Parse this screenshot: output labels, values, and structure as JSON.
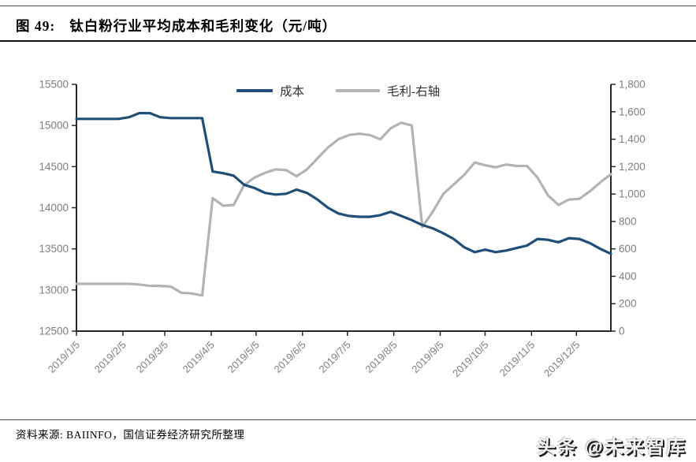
{
  "header": {
    "figure_label": "图 49:",
    "title": "钛白粉行业平均成本和毛利变化（元/吨）"
  },
  "legend": {
    "items": [
      {
        "label": "成本",
        "color": "#1F4E79"
      },
      {
        "label": "毛利-右轴",
        "color": "#B3B3B3"
      }
    ]
  },
  "footer": {
    "source": "资料来源: BAIINFO，国信证券经济研究所整理",
    "watermark": "头条 @未来智库"
  },
  "chart_data": {
    "type": "line",
    "title": "钛白粉行业平均成本和毛利变化（元/吨）",
    "unit": "元/吨",
    "grid": false,
    "legend_position": "top-center",
    "left_axis": {
      "min": 12500,
      "max": 15500,
      "step": 500,
      "tick_format": "plain"
    },
    "right_axis": {
      "min": 0,
      "max": 1800,
      "step": 200,
      "tick_format": "comma"
    },
    "x_tick_labels": [
      "2019/1/5",
      "2019/2/5",
      "2019/3/5",
      "2019/4/5",
      "2019/5/5",
      "2019/6/5",
      "2019/7/5",
      "2019/8/5",
      "2019/9/5",
      "2019/10/5",
      "2019/11/5",
      "2019/12/5"
    ],
    "x": [
      "2019/1/5",
      "2019/1/12",
      "2019/1/19",
      "2019/1/26",
      "2019/2/2",
      "2019/2/9",
      "2019/2/16",
      "2019/2/23",
      "2019/3/2",
      "2019/3/9",
      "2019/3/16",
      "2019/3/23",
      "2019/3/30",
      "2019/4/6",
      "2019/4/13",
      "2019/4/20",
      "2019/4/27",
      "2019/5/4",
      "2019/5/11",
      "2019/5/18",
      "2019/5/25",
      "2019/6/1",
      "2019/6/8",
      "2019/6/15",
      "2019/6/22",
      "2019/6/29",
      "2019/7/6",
      "2019/7/13",
      "2019/7/20",
      "2019/7/27",
      "2019/8/3",
      "2019/8/10",
      "2019/8/17",
      "2019/8/24",
      "2019/8/31",
      "2019/9/7",
      "2019/9/14",
      "2019/9/21",
      "2019/9/28",
      "2019/10/5",
      "2019/10/12",
      "2019/10/19",
      "2019/10/26",
      "2019/11/2",
      "2019/11/9",
      "2019/11/16",
      "2019/11/23",
      "2019/11/30",
      "2019/12/7",
      "2019/12/14",
      "2019/12/21",
      "2019/12/28"
    ],
    "series": [
      {
        "name": "成本",
        "axis": "left",
        "color": "#1F4E79",
        "values": [
          15080,
          15080,
          15080,
          15080,
          15080,
          15100,
          15150,
          15150,
          15100,
          15090,
          15090,
          15090,
          15090,
          14440,
          14420,
          14390,
          14280,
          14240,
          14180,
          14160,
          14170,
          14220,
          14180,
          14100,
          14000,
          13930,
          13900,
          13890,
          13890,
          13910,
          13950,
          13900,
          13850,
          13790,
          13750,
          13690,
          13620,
          13520,
          13460,
          13490,
          13460,
          13480,
          13510,
          13540,
          13620,
          13610,
          13580,
          13630,
          13620,
          13570,
          13500,
          13440
        ]
      },
      {
        "name": "毛利-右轴",
        "axis": "right",
        "color": "#B3B3B3",
        "values": [
          345,
          345,
          345,
          345,
          345,
          345,
          340,
          330,
          330,
          325,
          280,
          275,
          260,
          970,
          915,
          920,
          1065,
          1120,
          1155,
          1180,
          1175,
          1130,
          1180,
          1260,
          1340,
          1400,
          1430,
          1440,
          1430,
          1400,
          1480,
          1520,
          1500,
          760,
          870,
          1000,
          1070,
          1140,
          1230,
          1210,
          1195,
          1215,
          1205,
          1205,
          1120,
          990,
          920,
          960,
          965,
          1020,
          1085,
          1145
        ]
      }
    ]
  }
}
